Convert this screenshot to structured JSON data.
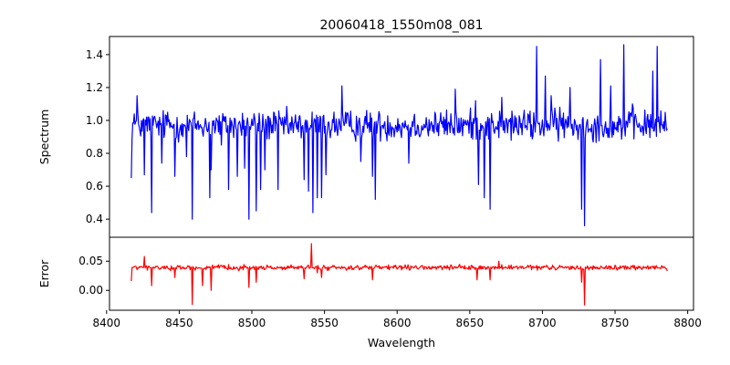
{
  "chart_data": {
    "type": "line",
    "title": "20060418_1550m08_081",
    "xlabel": "Wavelength",
    "x_range": [
      8417,
      8786
    ],
    "xlim": [
      8402,
      8804
    ],
    "xticks": [
      8400,
      8450,
      8500,
      8550,
      8600,
      8650,
      8700,
      8750,
      8800
    ],
    "panels": [
      {
        "name": "spectrum",
        "ylabel": "Spectrum",
        "ylim": [
          0.29,
          1.51
        ],
        "yticks": [
          0.4,
          0.6,
          0.8,
          1.0,
          1.2,
          1.4
        ],
        "ytick_labels": [
          "0.4",
          "0.6",
          "0.8",
          "1.0",
          "1.2",
          "1.4"
        ],
        "series": [
          {
            "name": "Spectrum",
            "color": "#0000ff",
            "base": 0.97,
            "noise": 0.09,
            "features": [
              [
                8417,
                0.65
              ],
              [
                8419,
                1.04
              ],
              [
                8421,
                1.15
              ],
              [
                8426,
                0.67
              ],
              [
                8431,
                0.44
              ],
              [
                8438,
                0.74
              ],
              [
                8442,
                1.05
              ],
              [
                8447,
                0.66
              ],
              [
                8452,
                0.98
              ],
              [
                8455,
                0.78
              ],
              [
                8459,
                0.4
              ],
              [
                8466,
                0.93
              ],
              [
                8471,
                0.53
              ],
              [
                8472,
                0.7
              ],
              [
                8479,
                0.85
              ],
              [
                8484,
                0.58
              ],
              [
                8490,
                0.66
              ],
              [
                8495,
                0.71
              ],
              [
                8498,
                0.4
              ],
              [
                8503,
                0.45
              ],
              [
                8506,
                0.58
              ],
              [
                8509,
                0.7
              ],
              [
                8518,
                0.58
              ],
              [
                8527,
                0.94
              ],
              [
                8532,
                0.93
              ],
              [
                8536,
                0.64
              ],
              [
                8539,
                0.57
              ],
              [
                8542,
                0.44
              ],
              [
                8545,
                0.53
              ],
              [
                8548,
                0.53
              ],
              [
                8551,
                0.67
              ],
              [
                8562,
                1.21
              ],
              [
                8575,
                0.75
              ],
              [
                8583,
                0.66
              ],
              [
                8585,
                0.52
              ],
              [
                8608,
                0.74
              ],
              [
                8640,
                1.19
              ],
              [
                8654,
                1.12
              ],
              [
                8656,
                0.61
              ],
              [
                8660,
                0.53
              ],
              [
                8664,
                0.46
              ],
              [
                8672,
                1.14
              ],
              [
                8690,
                1.04
              ],
              [
                8696,
                1.45
              ],
              [
                8702,
                1.27
              ],
              [
                8706,
                1.15
              ],
              [
                8712,
                1.08
              ],
              [
                8719,
                1.2
              ],
              [
                8727,
                0.46
              ],
              [
                8729,
                0.36
              ],
              [
                8740,
                1.37
              ],
              [
                8742,
                0.9
              ],
              [
                8747,
                1.21
              ],
              [
                8752,
                0.93
              ],
              [
                8756,
                1.46
              ],
              [
                8762,
                1.1
              ],
              [
                8769,
                0.96
              ],
              [
                8776,
                1.3
              ],
              [
                8779,
                1.45
              ],
              [
                8783,
                0.95
              ],
              [
                8786,
                0.95
              ]
            ]
          }
        ]
      },
      {
        "name": "error",
        "ylabel": "Error",
        "ylim": [
          -0.034,
          0.091
        ],
        "yticks": [
          0.0,
          0.05
        ],
        "ytick_labels": [
          "0.00",
          "0.05"
        ],
        "series": [
          {
            "name": "Error",
            "color": "#ff0000",
            "base": 0.039,
            "noise": 0.004,
            "features": [
              [
                8417,
                0.016
              ],
              [
                8419,
                0.04
              ],
              [
                8426,
                0.058
              ],
              [
                8431,
                0.008
              ],
              [
                8447,
                0.022
              ],
              [
                8459,
                -0.024
              ],
              [
                8466,
                0.008
              ],
              [
                8472,
                0.0
              ],
              [
                8498,
                0.005
              ],
              [
                8503,
                0.014
              ],
              [
                8536,
                0.02
              ],
              [
                8541,
                0.08
              ],
              [
                8545,
                0.03
              ],
              [
                8548,
                0.022
              ],
              [
                8583,
                0.018
              ],
              [
                8655,
                0.018
              ],
              [
                8664,
                0.018
              ],
              [
                8670,
                0.05
              ],
              [
                8727,
                0.014
              ],
              [
                8729,
                -0.025
              ],
              [
                8786,
                0.033
              ]
            ]
          }
        ]
      }
    ]
  }
}
